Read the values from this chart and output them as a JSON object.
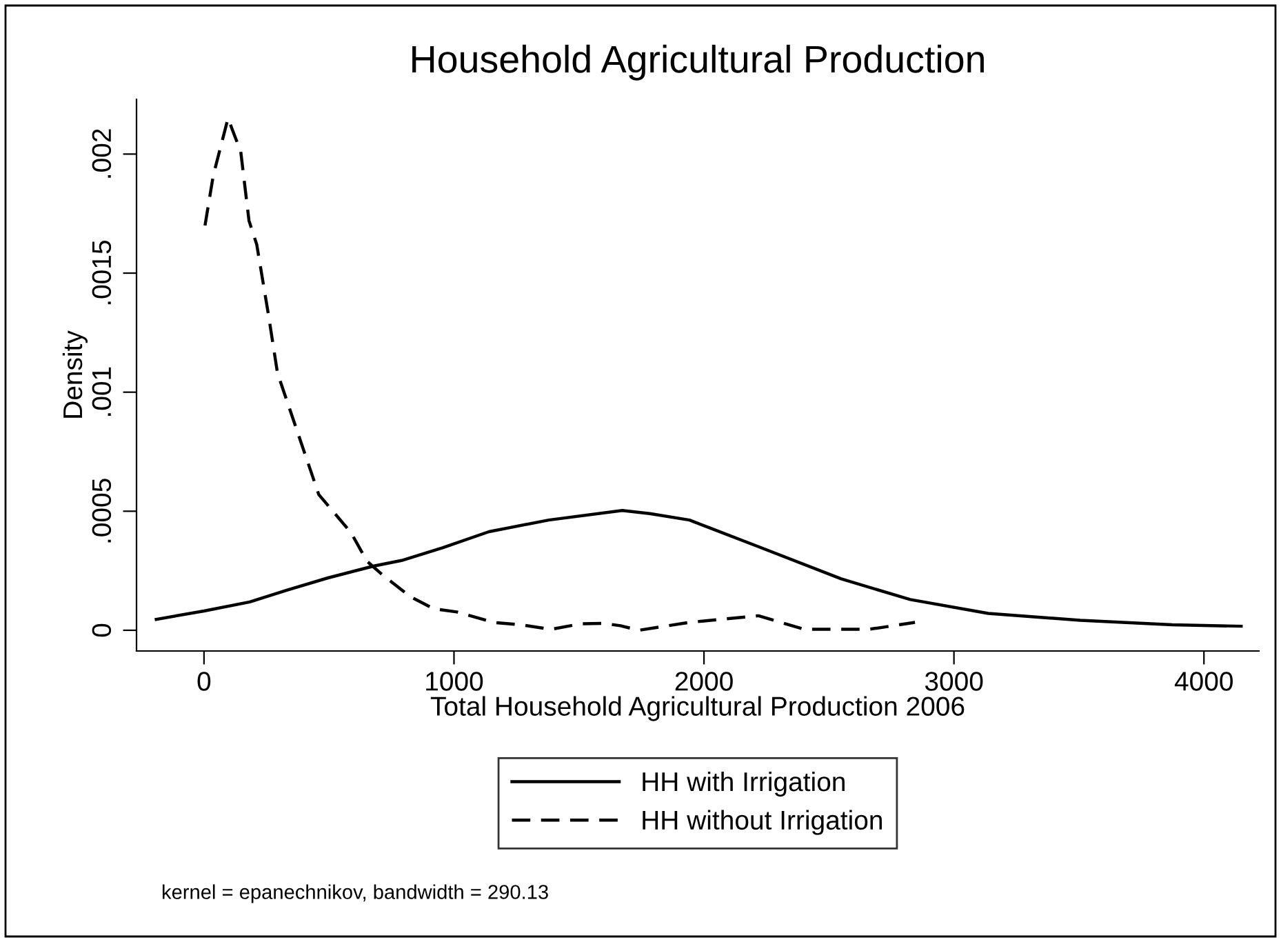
{
  "chart_data": {
    "type": "line",
    "title": "Household Agricultural Production",
    "xlabel": "Total Household Agricultural Production 2006",
    "ylabel": "Density",
    "xlim": [
      -270,
      4220
    ],
    "xticks": [
      0,
      1000,
      2000,
      3000,
      4000
    ],
    "ylim": [
      -8.7e-05,
      0.00223
    ],
    "yticks": [
      {
        "value": 0,
        "label": "0"
      },
      {
        "value": 0.0005,
        "label": ".0005"
      },
      {
        "value": 0.001,
        "label": ".001"
      },
      {
        "value": 0.0015,
        "label": ".0015"
      },
      {
        "value": 0.002,
        "label": ".002"
      }
    ],
    "grid": false,
    "legend": "bottom",
    "marker": "none",
    "series": [
      {
        "name": "HH with Irrigation",
        "color": "#000000",
        "line_style": "solid",
        "x": [
          -191,
          0,
          183,
          331,
          496,
          680,
          790,
          956,
          1140,
          1379,
          1673,
          1783,
          1942,
          2218,
          2549,
          2825,
          3137,
          3505,
          3873,
          4149
        ],
        "values": [
          4.6e-05,
          8.1e-05,
          0.000119,
          0.000168,
          0.00022,
          0.00027,
          0.000293,
          0.000347,
          0.000414,
          0.000463,
          0.000503,
          0.00049,
          0.000463,
          0.000351,
          0.000216,
          0.000129,
          7.1e-05,
          4.2e-05,
          2.3e-05,
          1.7e-05
        ]
      },
      {
        "name": "HH without Irrigation",
        "color": "#000000",
        "line_style": "dashed",
        "x": [
          4,
          37,
          96,
          147,
          180,
          211,
          257,
          294,
          349,
          404,
          459,
          588,
          652,
          717,
          827,
          919,
          1011,
          1158,
          1268,
          1388,
          1507,
          1599,
          1666,
          1740,
          1942,
          2218,
          2402,
          2660,
          2844
        ],
        "values": [
          0.0017,
          0.00191,
          0.00215,
          0.00201,
          0.00172,
          0.00162,
          0.00133,
          0.00108,
          0.00091,
          0.00074,
          0.00057,
          0.00041,
          0.00029,
          0.00023,
          0.00014,
          9e-05,
          7.7e-05,
          3.3e-05,
          2.3e-05,
          4e-06,
          2.7e-05,
          2.9e-05,
          1.9e-05,
          0,
          3.3e-05,
          6.1e-05,
          4e-06,
          4e-06,
          3.3e-05
        ]
      }
    ],
    "annotations": [
      "kernel = epanechnikov, bandwidth = 290.13"
    ]
  }
}
